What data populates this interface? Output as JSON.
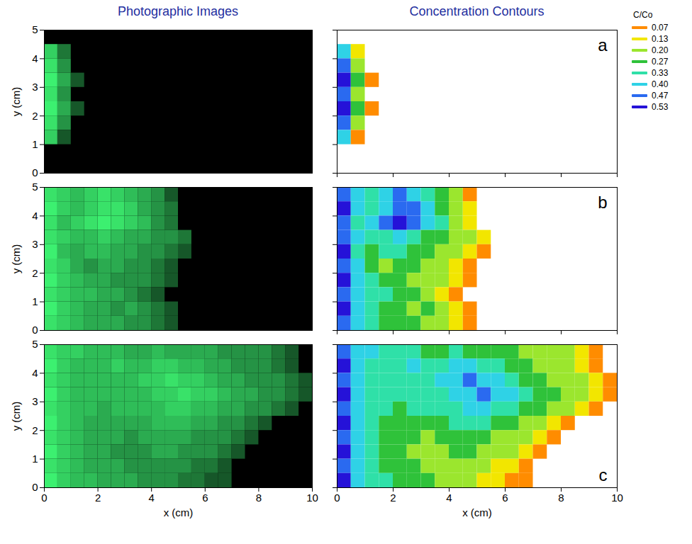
{
  "chart_data": {
    "type": "heatmap",
    "column_titles": [
      "Photographic Images",
      "Concentration Contours"
    ],
    "x_label": "x (cm)",
    "y_label": "y (cm)",
    "xlim": [
      0,
      10
    ],
    "ylim": [
      0,
      5
    ],
    "xticks": [
      0,
      2,
      4,
      6,
      8,
      10
    ],
    "yticks": [
      0,
      1,
      2,
      3,
      4,
      5
    ],
    "x": [
      0.25,
      0.75,
      1.25,
      1.75,
      2.25,
      2.75,
      3.25,
      3.75,
      4.25,
      4.75,
      5.25,
      5.75,
      6.25,
      6.75,
      7.25,
      7.75,
      8.25,
      8.75,
      9.25,
      9.75
    ],
    "y": [
      4.75,
      4.25,
      3.75,
      3.25,
      2.75,
      2.25,
      1.75,
      1.25,
      0.75,
      0.25
    ],
    "colorbar": {
      "title": "C/Co",
      "values": [
        0.07,
        0.13,
        0.2,
        0.27,
        0.33,
        0.4,
        0.47,
        0.53
      ],
      "colors": [
        "#ff8c00",
        "#f2e600",
        "#9be62e",
        "#2fc23a",
        "#2fe0a8",
        "#2fd2e6",
        "#2a6af0",
        "#2512d8"
      ]
    },
    "panels": [
      {
        "label": "a",
        "values": [
          [
            null,
            null,
            null,
            null,
            null,
            null,
            null,
            null,
            null,
            null,
            null,
            null,
            null,
            null,
            null,
            null,
            null,
            null,
            null,
            null
          ],
          [
            0.4,
            0.13,
            null,
            null,
            null,
            null,
            null,
            null,
            null,
            null,
            null,
            null,
            null,
            null,
            null,
            null,
            null,
            null,
            null,
            null
          ],
          [
            0.47,
            0.2,
            null,
            null,
            null,
            null,
            null,
            null,
            null,
            null,
            null,
            null,
            null,
            null,
            null,
            null,
            null,
            null,
            null,
            null
          ],
          [
            0.53,
            0.27,
            0.07,
            null,
            null,
            null,
            null,
            null,
            null,
            null,
            null,
            null,
            null,
            null,
            null,
            null,
            null,
            null,
            null,
            null
          ],
          [
            0.47,
            0.2,
            null,
            null,
            null,
            null,
            null,
            null,
            null,
            null,
            null,
            null,
            null,
            null,
            null,
            null,
            null,
            null,
            null,
            null
          ],
          [
            0.53,
            0.27,
            0.07,
            null,
            null,
            null,
            null,
            null,
            null,
            null,
            null,
            null,
            null,
            null,
            null,
            null,
            null,
            null,
            null,
            null
          ],
          [
            0.47,
            0.2,
            null,
            null,
            null,
            null,
            null,
            null,
            null,
            null,
            null,
            null,
            null,
            null,
            null,
            null,
            null,
            null,
            null,
            null
          ],
          [
            0.4,
            0.07,
            null,
            null,
            null,
            null,
            null,
            null,
            null,
            null,
            null,
            null,
            null,
            null,
            null,
            null,
            null,
            null,
            null,
            null
          ],
          [
            null,
            null,
            null,
            null,
            null,
            null,
            null,
            null,
            null,
            null,
            null,
            null,
            null,
            null,
            null,
            null,
            null,
            null,
            null,
            null
          ],
          [
            null,
            null,
            null,
            null,
            null,
            null,
            null,
            null,
            null,
            null,
            null,
            null,
            null,
            null,
            null,
            null,
            null,
            null,
            null,
            null
          ]
        ]
      },
      {
        "label": "b",
        "values": [
          [
            0.47,
            0.4,
            0.33,
            0.4,
            0.47,
            0.4,
            0.33,
            0.27,
            0.2,
            0.07,
            null,
            null,
            null,
            null,
            null,
            null,
            null,
            null,
            null,
            null
          ],
          [
            0.53,
            0.4,
            0.33,
            0.4,
            0.47,
            0.47,
            0.4,
            0.27,
            0.2,
            0.13,
            null,
            null,
            null,
            null,
            null,
            null,
            null,
            null,
            null,
            null
          ],
          [
            0.47,
            0.33,
            0.4,
            0.47,
            0.53,
            0.47,
            0.4,
            0.33,
            0.2,
            0.13,
            null,
            null,
            null,
            null,
            null,
            null,
            null,
            null,
            null,
            null
          ],
          [
            0.47,
            0.4,
            0.33,
            0.33,
            0.4,
            0.33,
            0.27,
            0.27,
            0.2,
            0.2,
            0.13,
            null,
            null,
            null,
            null,
            null,
            null,
            null,
            null,
            null
          ],
          [
            0.53,
            0.33,
            0.27,
            0.33,
            0.33,
            0.27,
            0.27,
            0.2,
            0.2,
            0.13,
            0.07,
            null,
            null,
            null,
            null,
            null,
            null,
            null,
            null,
            null
          ],
          [
            0.47,
            0.4,
            0.27,
            0.2,
            0.27,
            0.27,
            0.2,
            0.2,
            0.13,
            0.07,
            null,
            null,
            null,
            null,
            null,
            null,
            null,
            null,
            null,
            null
          ],
          [
            0.53,
            0.4,
            0.33,
            0.27,
            0.27,
            0.2,
            0.2,
            0.2,
            0.13,
            0.07,
            null,
            null,
            null,
            null,
            null,
            null,
            null,
            null,
            null,
            null
          ],
          [
            0.47,
            0.4,
            0.33,
            0.33,
            0.27,
            0.27,
            0.2,
            0.13,
            0.07,
            null,
            null,
            null,
            null,
            null,
            null,
            null,
            null,
            null,
            null,
            null
          ],
          [
            0.53,
            0.4,
            0.33,
            0.27,
            0.27,
            0.2,
            0.27,
            0.2,
            0.13,
            0.07,
            null,
            null,
            null,
            null,
            null,
            null,
            null,
            null,
            null,
            null
          ],
          [
            0.47,
            0.4,
            0.33,
            0.27,
            0.27,
            0.27,
            0.2,
            0.2,
            0.13,
            0.07,
            null,
            null,
            null,
            null,
            null,
            null,
            null,
            null,
            null,
            null
          ]
        ]
      },
      {
        "label": "c",
        "values": [
          [
            0.47,
            0.4,
            0.4,
            0.33,
            0.33,
            0.33,
            0.27,
            0.27,
            0.33,
            0.27,
            0.27,
            0.27,
            0.27,
            0.2,
            0.2,
            0.2,
            0.2,
            0.13,
            0.07,
            null
          ],
          [
            0.53,
            0.4,
            0.33,
            0.33,
            0.33,
            0.4,
            0.33,
            0.33,
            0.4,
            0.4,
            0.33,
            0.33,
            0.27,
            0.27,
            0.2,
            0.2,
            0.2,
            0.13,
            0.07,
            null
          ],
          [
            0.47,
            0.4,
            0.33,
            0.33,
            0.33,
            0.33,
            0.33,
            0.4,
            0.4,
            0.47,
            0.4,
            0.4,
            0.33,
            0.27,
            0.27,
            0.2,
            0.2,
            0.2,
            0.13,
            0.07
          ],
          [
            0.53,
            0.4,
            0.33,
            0.33,
            0.33,
            0.33,
            0.33,
            0.33,
            0.4,
            0.4,
            0.47,
            0.4,
            0.4,
            0.33,
            0.27,
            0.27,
            0.2,
            0.2,
            0.13,
            0.07
          ],
          [
            0.47,
            0.4,
            0.33,
            0.33,
            0.27,
            0.33,
            0.33,
            0.33,
            0.33,
            0.4,
            0.4,
            0.33,
            0.33,
            0.27,
            0.27,
            0.2,
            0.2,
            0.13,
            0.07,
            null
          ],
          [
            0.53,
            0.4,
            0.33,
            0.27,
            0.27,
            0.27,
            0.27,
            0.27,
            0.33,
            0.33,
            0.33,
            0.27,
            0.27,
            0.2,
            0.2,
            0.13,
            0.07,
            null,
            null,
            null
          ],
          [
            0.47,
            0.4,
            0.33,
            0.27,
            0.27,
            0.27,
            0.2,
            0.27,
            0.27,
            0.27,
            0.27,
            0.2,
            0.2,
            0.2,
            0.13,
            0.07,
            null,
            null,
            null,
            null
          ],
          [
            0.53,
            0.4,
            0.33,
            0.27,
            0.27,
            0.2,
            0.2,
            0.2,
            0.27,
            0.27,
            0.2,
            0.2,
            0.2,
            0.13,
            0.07,
            null,
            null,
            null,
            null,
            null
          ],
          [
            0.47,
            0.4,
            0.33,
            0.27,
            0.27,
            0.27,
            0.2,
            0.2,
            0.2,
            0.2,
            0.2,
            0.13,
            0.13,
            0.07,
            null,
            null,
            null,
            null,
            null,
            null
          ],
          [
            0.53,
            0.4,
            0.33,
            0.33,
            0.27,
            0.27,
            0.27,
            0.2,
            0.2,
            0.2,
            0.13,
            0.13,
            0.07,
            0.07,
            null,
            null,
            null,
            null,
            null,
            null
          ]
        ]
      }
    ]
  }
}
